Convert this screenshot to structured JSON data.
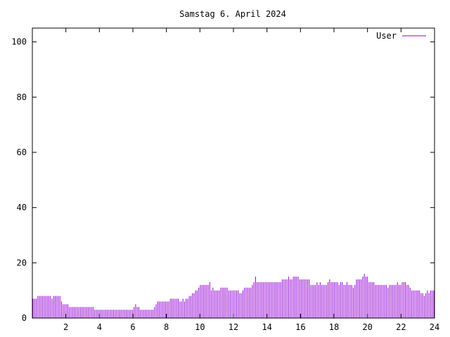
{
  "chart_data": {
    "type": "bar",
    "title": "Samstag 6. April 2024",
    "xlabel": "",
    "ylabel": "",
    "xlim": [
      0,
      24
    ],
    "ylim": [
      0,
      105
    ],
    "x_ticks": [
      2,
      4,
      6,
      8,
      10,
      12,
      14,
      16,
      18,
      20,
      22,
      24
    ],
    "y_ticks": [
      0,
      20,
      40,
      60,
      80,
      100
    ],
    "x_tick_labels": [
      "2",
      "4",
      "6",
      "8",
      "10",
      "12",
      "14",
      "16",
      "18",
      "20",
      "22",
      "24"
    ],
    "y_tick_labels": [
      "0",
      "20",
      "40",
      "60",
      "80",
      "100"
    ],
    "grid": false,
    "legend_position": "top-right",
    "series": [
      {
        "name": "User",
        "color": "#9400d3",
        "values": [
          7,
          7,
          7,
          8,
          8,
          8,
          8,
          8,
          8,
          8,
          8,
          8,
          7,
          8,
          8,
          8,
          8,
          8,
          6,
          5,
          5,
          5,
          5,
          4,
          4,
          4,
          4,
          4,
          4,
          4,
          4,
          4,
          4,
          4,
          4,
          4,
          4,
          4,
          4,
          3,
          3,
          3,
          3,
          3,
          3,
          3,
          3,
          3,
          3,
          3,
          3,
          3,
          3,
          3,
          3,
          3,
          3,
          3,
          3,
          3,
          3,
          3,
          3,
          3,
          4,
          5,
          4,
          4,
          3,
          3,
          3,
          3,
          3,
          3,
          3,
          3,
          3,
          4,
          5,
          6,
          6,
          6,
          6,
          6,
          6,
          6,
          6,
          7,
          7,
          7,
          7,
          7,
          7,
          6,
          6,
          7,
          6,
          7,
          7,
          8,
          8,
          9,
          9,
          10,
          10,
          11,
          12,
          12,
          12,
          12,
          12,
          12,
          13,
          10,
          11,
          10,
          10,
          10,
          10,
          11,
          11,
          11,
          11,
          11,
          10,
          10,
          10,
          10,
          10,
          10,
          10,
          9,
          9,
          10,
          11,
          11,
          11,
          11,
          11,
          12,
          13,
          15,
          13,
          13,
          13,
          13,
          13,
          13,
          13,
          13,
          13,
          13,
          13,
          13,
          13,
          13,
          13,
          13,
          14,
          14,
          14,
          14,
          15,
          14,
          14,
          15,
          15,
          15,
          15,
          14,
          14,
          14,
          14,
          14,
          14,
          14,
          12,
          12,
          12,
          12,
          13,
          12,
          13,
          12,
          12,
          12,
          12,
          13,
          14,
          13,
          13,
          13,
          13,
          13,
          12,
          13,
          13,
          12,
          12,
          13,
          12,
          12,
          12,
          11,
          12,
          14,
          14,
          14,
          14,
          15,
          16,
          15,
          15,
          13,
          13,
          13,
          13,
          12,
          12,
          12,
          12,
          12,
          12,
          12,
          12,
          11,
          12,
          12,
          12,
          12,
          12,
          13,
          12,
          12,
          13,
          13,
          13,
          12,
          12,
          11,
          10,
          10,
          10,
          10,
          10,
          10,
          9,
          9,
          8,
          9,
          10,
          9,
          10,
          10,
          10
        ]
      }
    ]
  }
}
